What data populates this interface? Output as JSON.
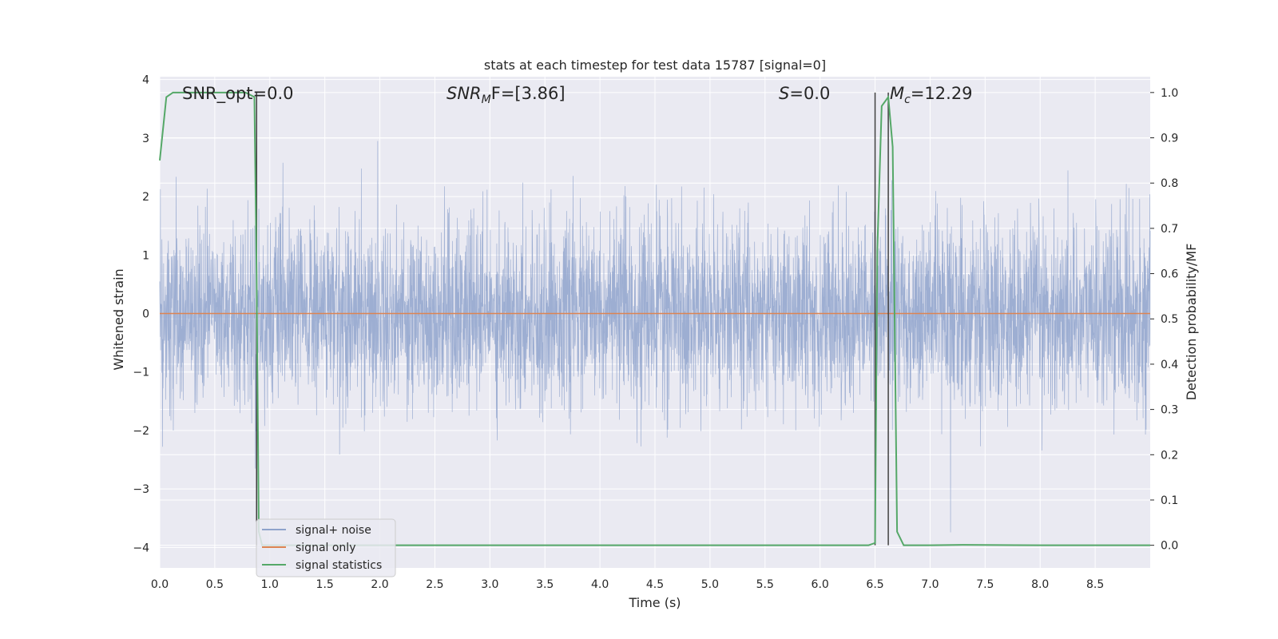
{
  "chart_data": {
    "type": "line",
    "title": "stats at each timestep for test data 15787 [signal=0]",
    "xlabel": "Time (s)",
    "ylabel": "Whitened strain",
    "ylabel_right": "Detection probability/MF",
    "xlim": [
      0.0,
      9.0
    ],
    "ylim": [
      -4.35,
      4.05
    ],
    "ylim_right": [
      -0.05,
      1.035
    ],
    "xticks": [
      "0.0",
      "0.5",
      "1.0",
      "1.5",
      "2.0",
      "2.5",
      "3.0",
      "3.5",
      "4.0",
      "4.5",
      "5.0",
      "5.5",
      "6.0",
      "6.5",
      "7.0",
      "7.5",
      "8.0",
      "8.5"
    ],
    "yticks": [
      "4",
      "3",
      "2",
      "1",
      "0",
      "−1",
      "−2",
      "−3",
      "−4"
    ],
    "yticks_right": [
      "1.0",
      "0.9",
      "0.8",
      "0.7",
      "0.6",
      "0.5",
      "0.4",
      "0.3",
      "0.2",
      "0.1",
      "0.0"
    ],
    "grid": true,
    "legend_position": "lower-left",
    "annotations": {
      "snr_opt": "SNR_opt=0.0",
      "snr_mf_label": "SNR",
      "snr_mf_sub": "M",
      "snr_mf_rest": "F=[3.86]",
      "s_label": "S",
      "s_rest": "=0.0",
      "mc_label": "M",
      "mc_sub": "c",
      "mc_rest": "=12.29"
    },
    "series": [
      {
        "name": "signal+ noise",
        "color": "#8fa3cc",
        "note_description": "whitened noise ~ N(0, 0.75), dense samples from 0 to 9 s",
        "amplitude_envelope": {
          "typical": [
            -1.7,
            2.5
          ],
          "extreme": [
            -4.0,
            3.7
          ]
        }
      },
      {
        "name": "signal only",
        "color": "#dd8452",
        "x": [
          0.0,
          9.0
        ],
        "y": [
          0.0,
          0.0
        ]
      },
      {
        "name": "signal statistics",
        "color": "#55a868",
        "axis": "right",
        "x": [
          0.0,
          0.06,
          0.12,
          0.2,
          0.4,
          0.6,
          0.78,
          0.86,
          0.88,
          0.9,
          0.93,
          1.0,
          2.0,
          4.0,
          6.0,
          6.44,
          6.5,
          6.52,
          6.56,
          6.62,
          6.66,
          6.7,
          6.76,
          7.0,
          7.3,
          8.0,
          9.0
        ],
        "y": [
          0.85,
          0.99,
          1.0,
          1.0,
          1.0,
          1.0,
          1.0,
          0.99,
          0.6,
          0.03,
          0.0,
          0.0,
          0.0,
          0.0,
          0.0,
          0.0,
          0.005,
          0.65,
          0.97,
          0.99,
          0.88,
          0.03,
          0.0,
          0.0,
          0.001,
          0.0,
          0.0
        ]
      }
    ],
    "vertical_lines_right_axis": [
      {
        "x": 0.88,
        "y": [
          0.0,
          1.0
        ],
        "color": "#404040"
      },
      {
        "x": 6.5,
        "y": [
          0.0,
          1.0
        ],
        "color": "#404040"
      },
      {
        "x": 6.62,
        "y": [
          0.0,
          1.0
        ],
        "color": "#404040"
      }
    ]
  }
}
